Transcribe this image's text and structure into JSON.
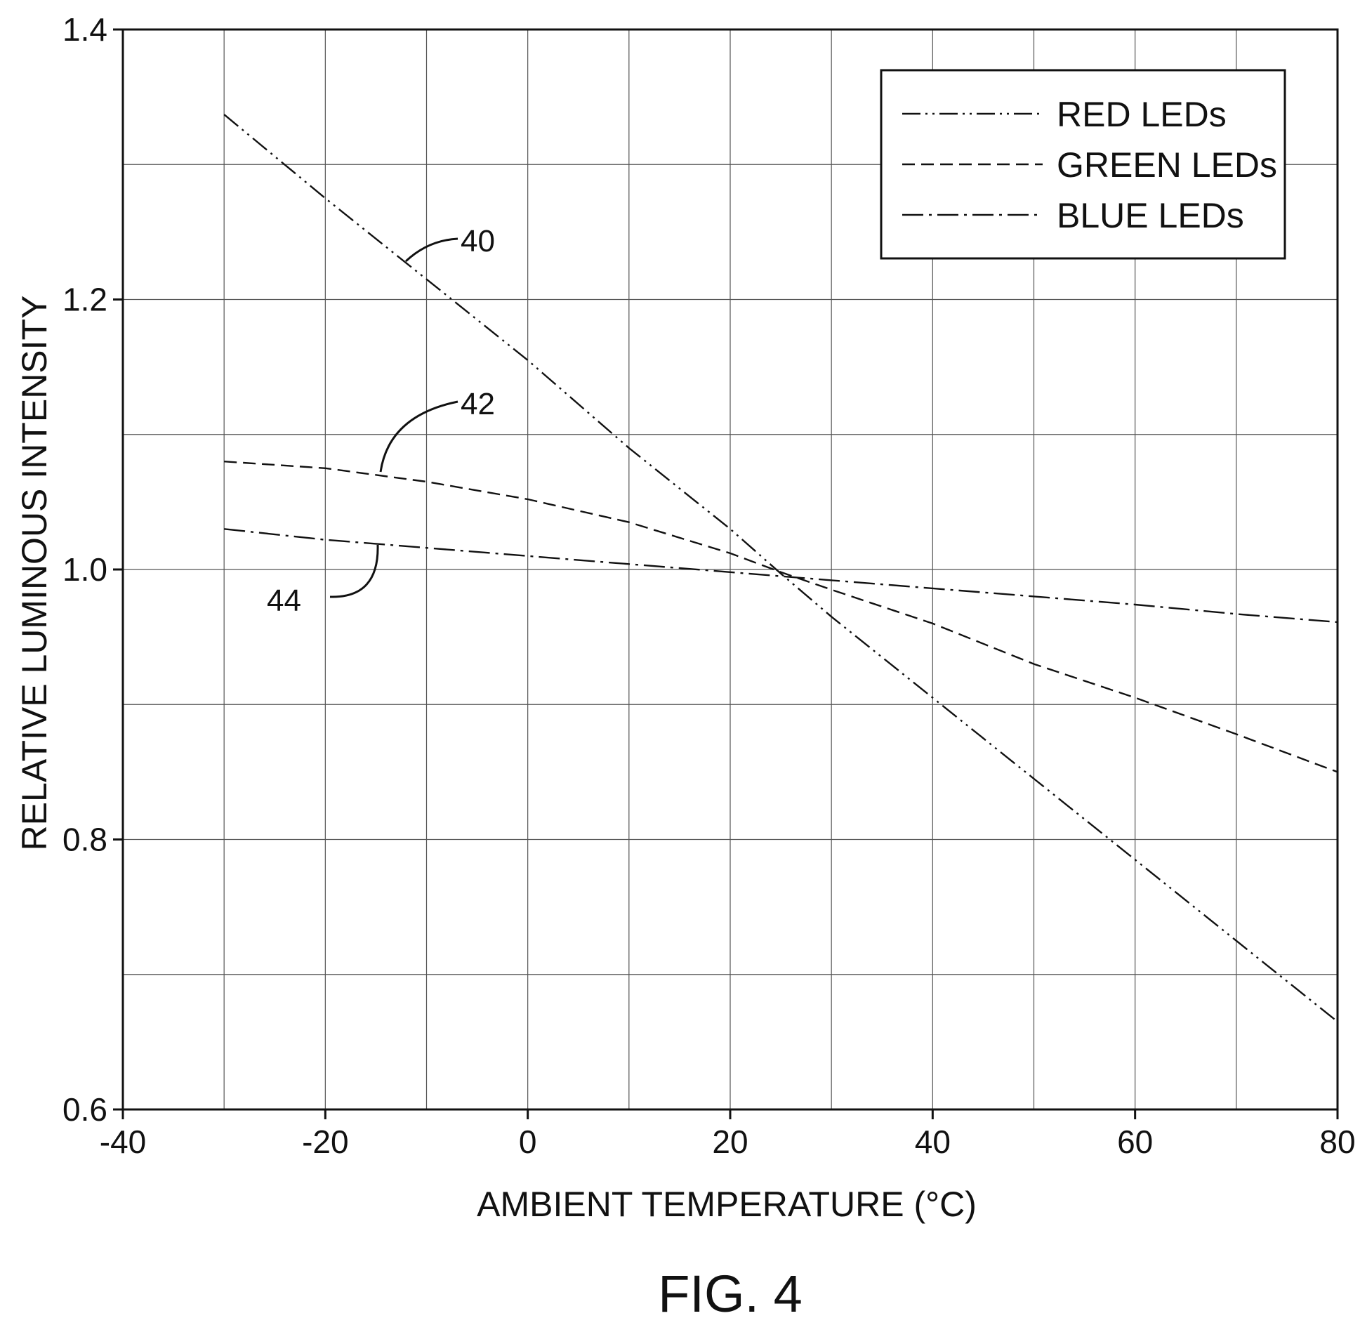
{
  "figure_label": "FIG. 4",
  "chart_data": {
    "type": "line",
    "xlabel": "AMBIENT TEMPERATURE (°C)",
    "ylabel": "RELATIVE LUMINOUS INTENSITY",
    "xlim": [
      -40,
      80
    ],
    "ylim": [
      0.6,
      1.4
    ],
    "x_ticks": [
      -40,
      -20,
      0,
      20,
      40,
      60,
      80
    ],
    "y_ticks": [
      0.6,
      0.8,
      1.0,
      1.2,
      1.4
    ],
    "x_tick_labels": [
      "-40",
      "-20",
      "0",
      "20",
      "40",
      "60",
      "80"
    ],
    "y_tick_labels": [
      "0.6",
      "0.8",
      "1.0",
      "1.2",
      "1.4"
    ],
    "x_minor_grid": [
      -30,
      -10,
      10,
      30,
      50,
      70
    ],
    "y_minor_grid": [
      0.7,
      0.9,
      1.1,
      1.3
    ],
    "grid": true,
    "legend_position": "top-right",
    "series": [
      {
        "name": "RED LEDs",
        "ref": "40",
        "line_style": "dash-dot-dot",
        "x": [
          -30,
          -20,
          -10,
          0,
          10,
          20,
          25,
          30,
          40,
          50,
          60,
          70,
          80
        ],
        "y": [
          1.337,
          1.275,
          1.215,
          1.155,
          1.09,
          1.03,
          0.997,
          0.965,
          0.905,
          0.845,
          0.785,
          0.725,
          0.665
        ]
      },
      {
        "name": "GREEN LEDs",
        "ref": "42",
        "line_style": "dashed",
        "x": [
          -30,
          -20,
          -10,
          0,
          10,
          20,
          25,
          30,
          40,
          50,
          60,
          70,
          80
        ],
        "y": [
          1.08,
          1.075,
          1.065,
          1.052,
          1.035,
          1.012,
          0.998,
          0.985,
          0.96,
          0.93,
          0.905,
          0.878,
          0.85
        ]
      },
      {
        "name": "BLUE LEDs",
        "ref": "44",
        "line_style": "dash-dot",
        "x": [
          -30,
          -20,
          -10,
          0,
          10,
          20,
          30,
          40,
          50,
          60,
          70,
          80
        ],
        "y": [
          1.03,
          1.022,
          1.016,
          1.01,
          1.004,
          0.998,
          0.992,
          0.986,
          0.98,
          0.974,
          0.967,
          0.961
        ]
      }
    ]
  }
}
